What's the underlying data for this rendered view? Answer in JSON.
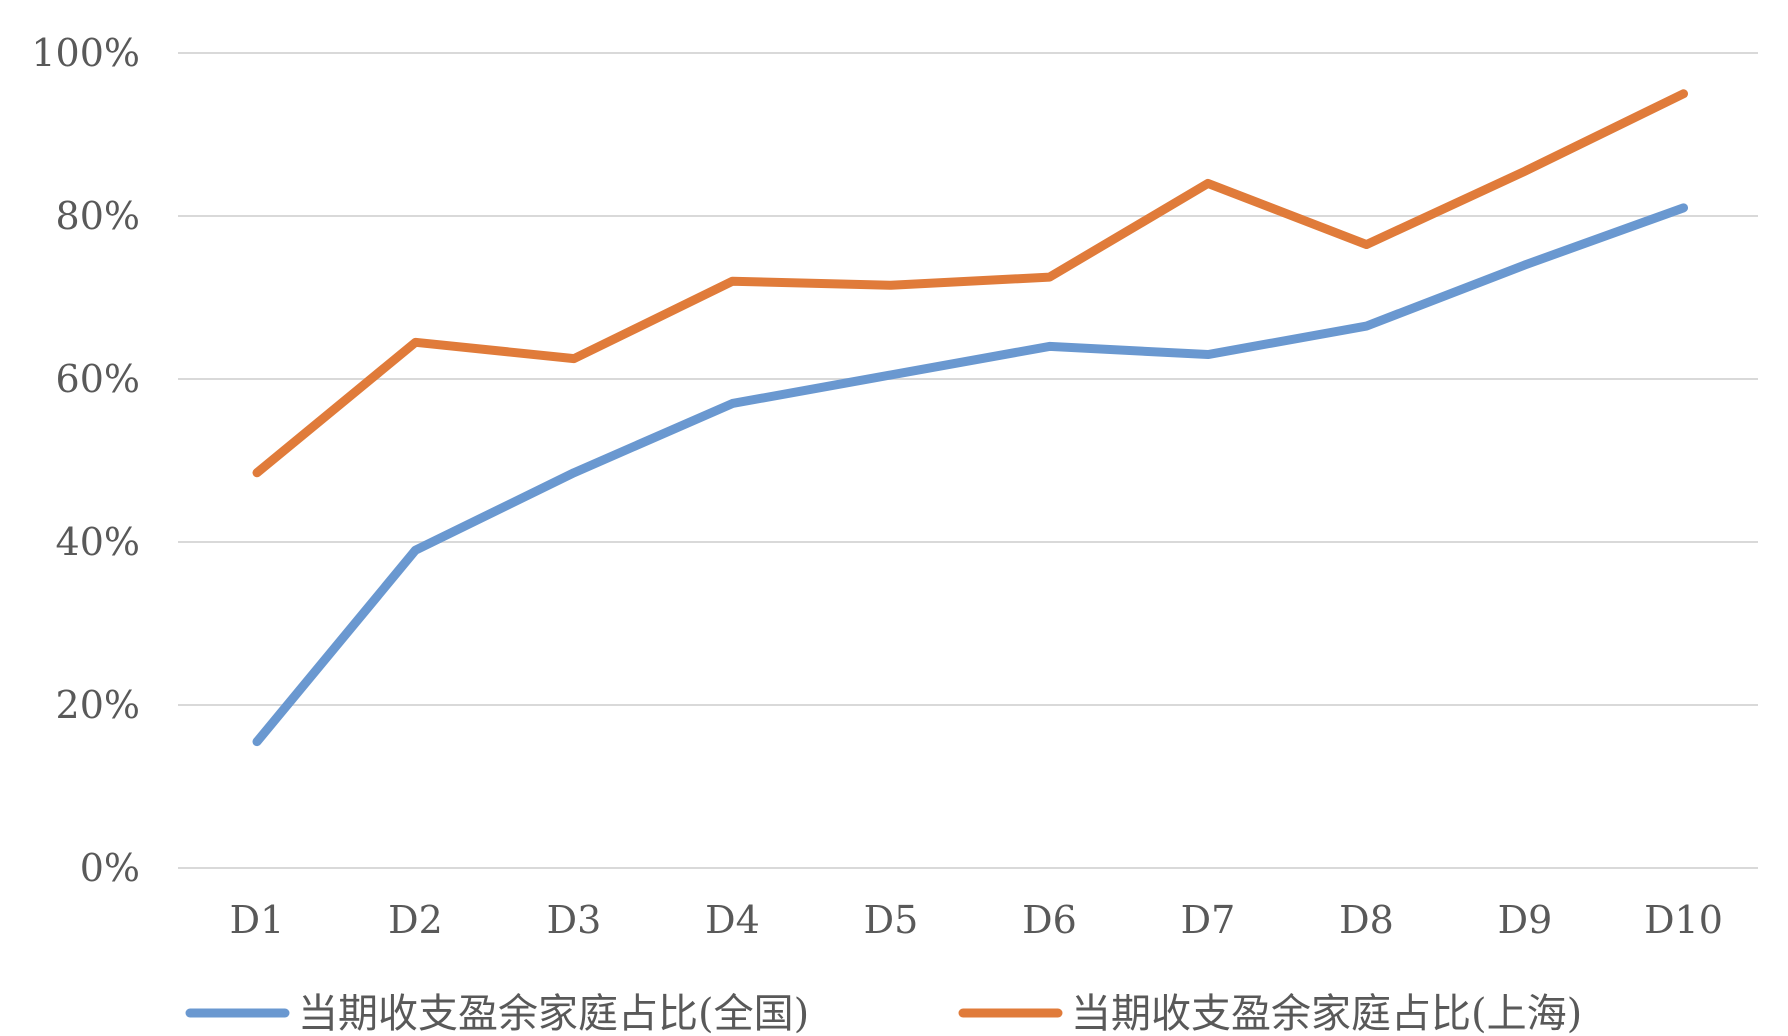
{
  "chart_data": {
    "type": "line",
    "title": "",
    "xlabel": "",
    "ylabel": "",
    "categories": [
      "D1",
      "D2",
      "D3",
      "D4",
      "D5",
      "D6",
      "D7",
      "D8",
      "D9",
      "D10"
    ],
    "ylim": [
      0,
      100
    ],
    "yticks": [
      0,
      20,
      40,
      60,
      80,
      100
    ],
    "ytick_labels": [
      "0%",
      "20%",
      "40%",
      "60%",
      "80%",
      "100%"
    ],
    "grid": true,
    "legend_position": "bottom",
    "series": [
      {
        "name": "当期收支盈余家庭占比(全国)",
        "color": "#6a98d0",
        "values": [
          15.5,
          39,
          48.5,
          57,
          60.5,
          64,
          63,
          66.5,
          74,
          81
        ]
      },
      {
        "name": "当期收支盈余家庭占比(上海)",
        "color": "#e07b3a",
        "values": [
          48.5,
          64.5,
          62.5,
          72,
          71.5,
          72.5,
          84,
          76.5,
          85.5,
          95
        ]
      }
    ]
  }
}
